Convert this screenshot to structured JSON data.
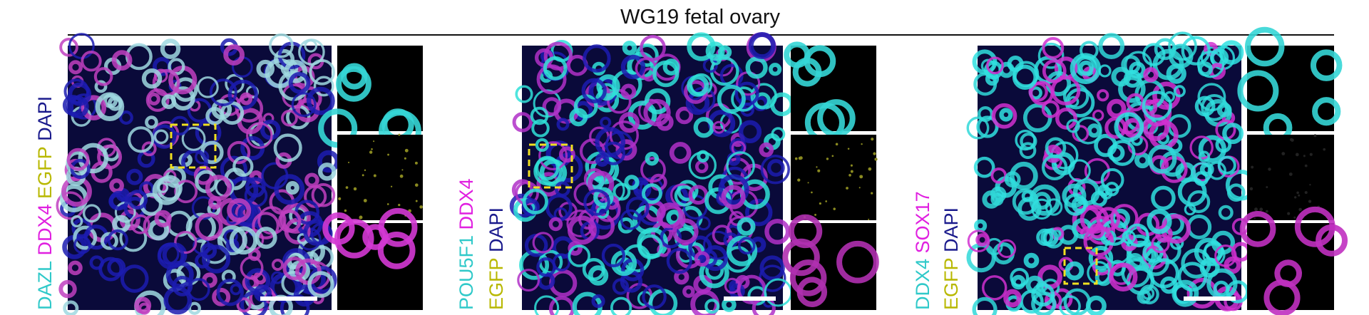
{
  "title": "WG19 fetal ovary",
  "panels": [
    {
      "label_lines": [
        [
          {
            "text": "DAZL",
            "color": "#2fc9c9"
          },
          {
            "text": "DDX4",
            "color": "#e020e0"
          },
          {
            "text": "EGFP",
            "color": "#b8b800"
          },
          {
            "text": "DAPI",
            "color": "#1a1a8c"
          }
        ]
      ]
    },
    {
      "label_lines": [
        [
          {
            "text": "POU5F1",
            "color": "#2fc9c9"
          },
          {
            "text": "DDX4",
            "color": "#e020e0"
          }
        ],
        [
          {
            "text": "EGFP",
            "color": "#b8b800"
          },
          {
            "text": "DAPI",
            "color": "#1a1a8c"
          }
        ]
      ]
    },
    {
      "label_lines": [
        [
          {
            "text": "DDX4",
            "color": "#2fc9c9"
          },
          {
            "text": "SOX17",
            "color": "#e020e0"
          }
        ],
        [
          {
            "text": "EGFP",
            "color": "#b8b800"
          },
          {
            "text": "DAPI",
            "color": "#1a1a8c"
          }
        ]
      ]
    }
  ]
}
